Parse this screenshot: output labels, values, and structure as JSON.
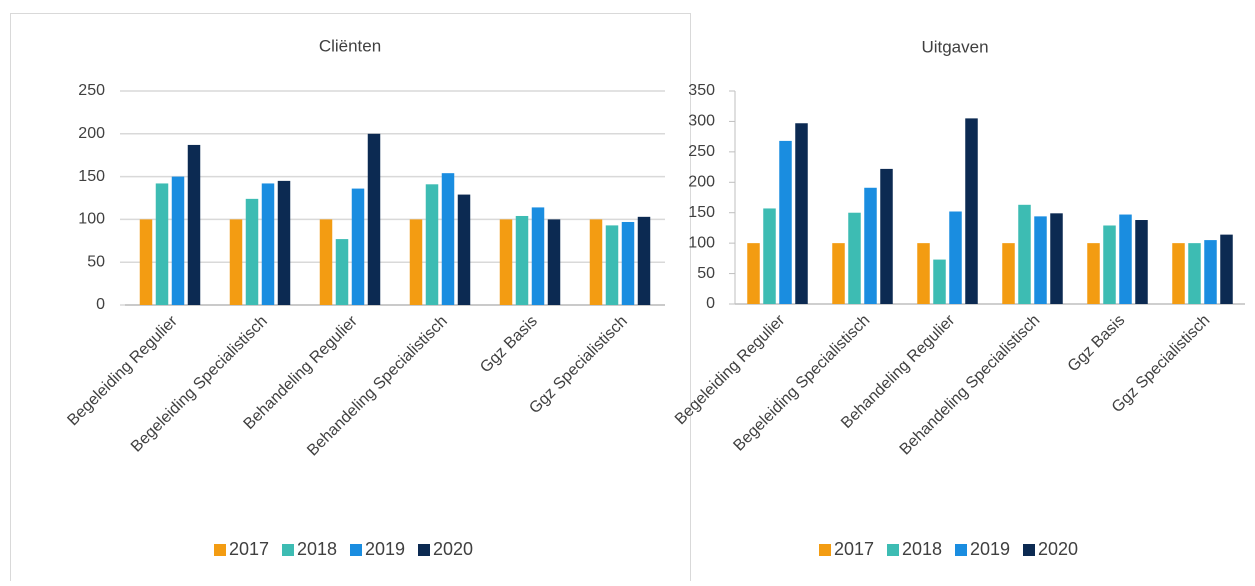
{
  "chart_data": [
    {
      "type": "bar",
      "title": "Cliënten",
      "categories": [
        "Begeleiding Regulier",
        "Begeleiding Specialistisch",
        "Behandeling Regulier",
        "Behandeling Specialistisch",
        "Ggz Basis",
        "Ggz Specialistisch"
      ],
      "series": [
        {
          "name": "2017",
          "color": "#f39c12",
          "values": [
            100,
            100,
            100,
            100,
            100,
            100
          ]
        },
        {
          "name": "2018",
          "color": "#3dbcb3",
          "values": [
            142,
            124,
            77,
            141,
            104,
            93
          ]
        },
        {
          "name": "2019",
          "color": "#1a8de0",
          "values": [
            150,
            142,
            136,
            154,
            114,
            97
          ]
        },
        {
          "name": "2020",
          "color": "#0c2a52",
          "values": [
            187,
            145,
            200,
            129,
            100,
            103
          ]
        }
      ],
      "ylim": [
        0,
        250
      ],
      "yticks": [
        0,
        50,
        100,
        150,
        200,
        250
      ],
      "grid": true
    },
    {
      "type": "bar",
      "title": "Uitgaven",
      "categories": [
        "Begeleiding Regulier",
        "Begeleiding Specialistisch",
        "Behandeling Regulier",
        "Behandeling Specialistisch",
        "Ggz Basis",
        "Ggz Specialistisch"
      ],
      "series": [
        {
          "name": "2017",
          "color": "#f39c12",
          "values": [
            100,
            100,
            100,
            100,
            100,
            100
          ]
        },
        {
          "name": "2018",
          "color": "#3dbcb3",
          "values": [
            157,
            150,
            73,
            163,
            129,
            100
          ]
        },
        {
          "name": "2019",
          "color": "#1a8de0",
          "values": [
            268,
            191,
            152,
            144,
            147,
            105
          ]
        },
        {
          "name": "2020",
          "color": "#0c2a52",
          "values": [
            297,
            222,
            305,
            149,
            138,
            114
          ]
        }
      ],
      "ylim": [
        0,
        350
      ],
      "yticks": [
        0,
        50,
        100,
        150,
        200,
        250,
        300,
        350
      ],
      "grid": false
    }
  ]
}
